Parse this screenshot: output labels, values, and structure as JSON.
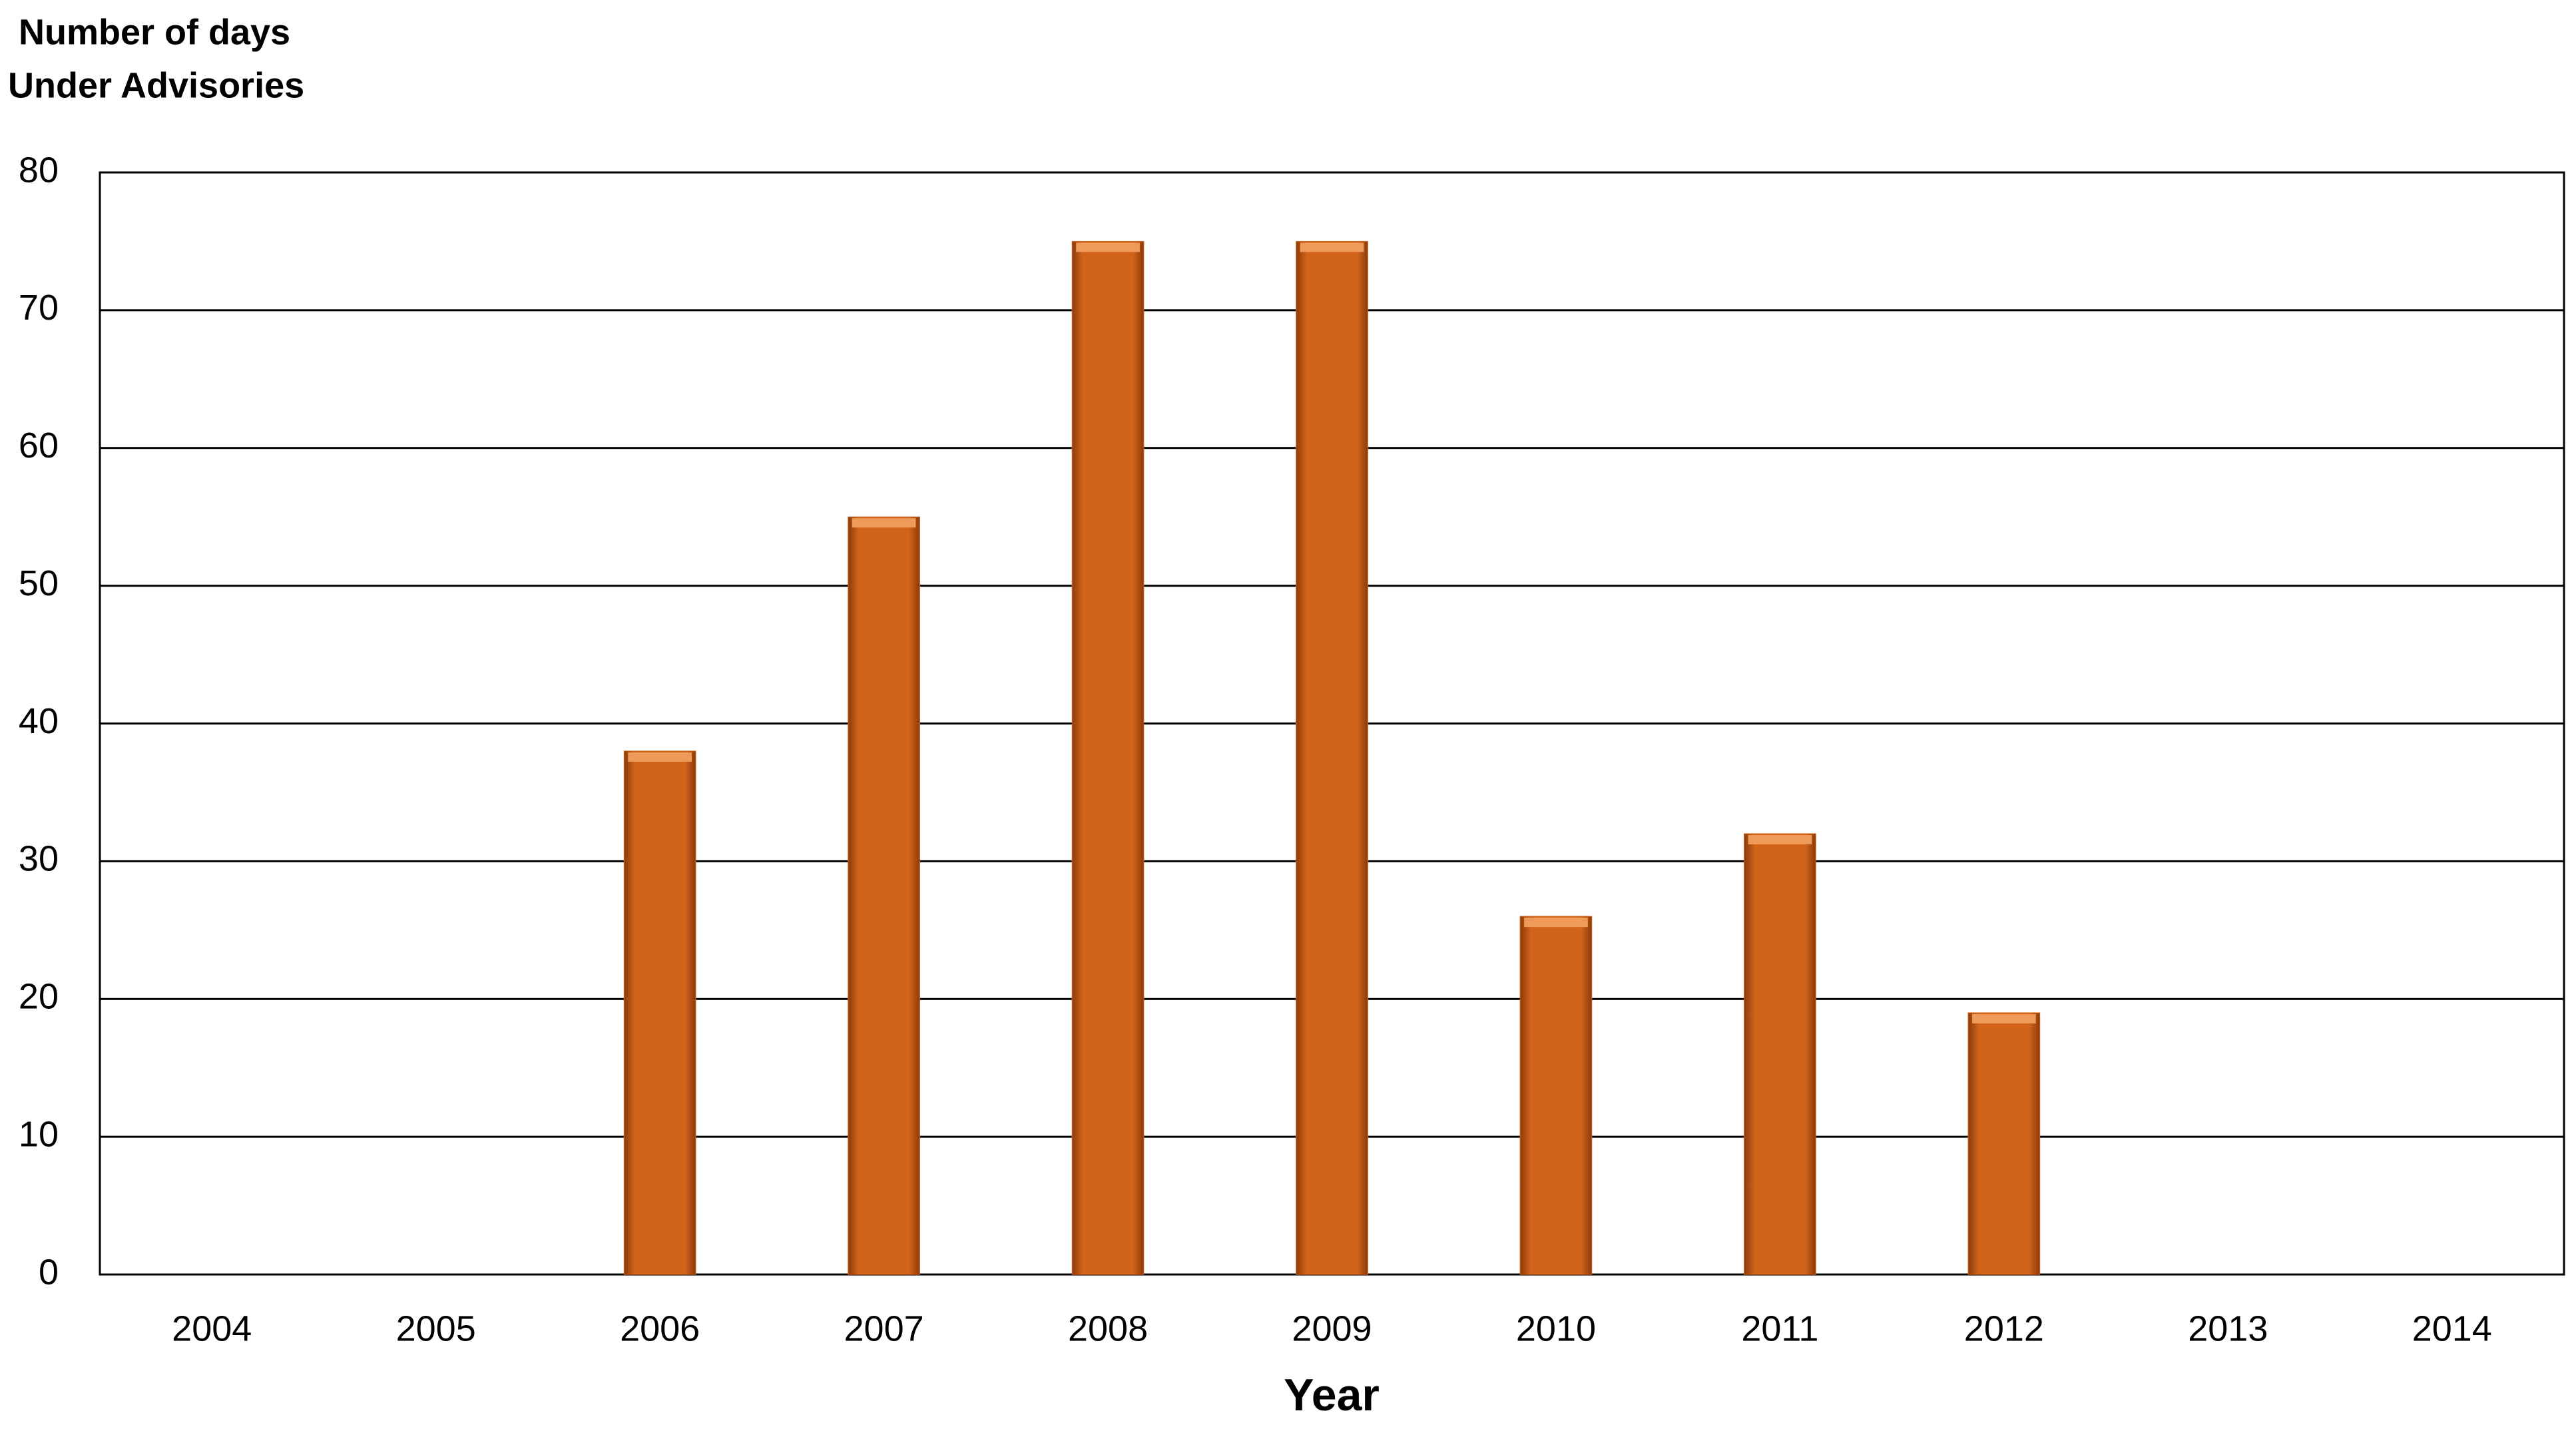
{
  "chart_data": {
    "type": "bar",
    "ylabel": [
      "Number of days",
      "Under Advisories"
    ],
    "xlabel": "Year",
    "categories": [
      "2004",
      "2005",
      "2006",
      "2007",
      "2008",
      "2009",
      "2010",
      "2011",
      "2012",
      "2013",
      "2014"
    ],
    "values": [
      0,
      0,
      38,
      55,
      75,
      75,
      26,
      32,
      19,
      0,
      0
    ],
    "color": "#d2641a",
    "ylim": [
      0,
      80
    ],
    "yticks": [
      0,
      10,
      20,
      30,
      40,
      50,
      60,
      70,
      80
    ],
    "grid": true
  }
}
